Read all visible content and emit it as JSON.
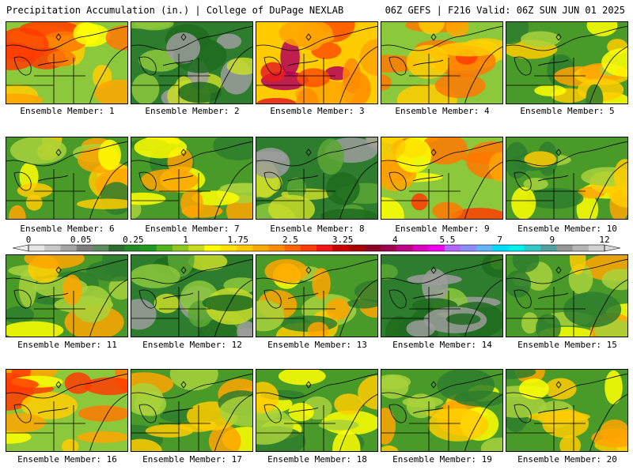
{
  "header": {
    "left": "Precipitation Accumulation (in.) | College of DuPage NEXLAB",
    "right": "06Z GEFS | F216 Valid: 06Z SUN JUN 01 2025"
  },
  "colorbar": {
    "labels": [
      "0",
      "0.05",
      "0.25",
      "1",
      "1.75",
      "2.5",
      "3.25",
      "4",
      "5.5",
      "7",
      "9",
      "12"
    ],
    "colors": [
      "#e6e6e6",
      "#c8c8c8",
      "#a6a6a6",
      "#7d7d7d",
      "#5f8a5f",
      "#2e6b2e",
      "#238b23",
      "#1e9a1e",
      "#4fb41e",
      "#8cc81e",
      "#c8dc1e",
      "#ffff00",
      "#ffe100",
      "#ffc800",
      "#ffaa00",
      "#ff8c00",
      "#ff6400",
      "#ff3c00",
      "#f01414",
      "#c80000",
      "#aa0000",
      "#8c0023",
      "#a00050",
      "#be0087",
      "#dc00be",
      "#f000f0",
      "#b464ff",
      "#8c8cff",
      "#64b4ff",
      "#00dcff",
      "#00f0f0",
      "#32c8c8",
      "#50a0a0",
      "#969696",
      "#b4b4b4",
      "#d2d2d2"
    ]
  },
  "members": [
    {
      "label": "Ensemble Member: 1",
      "scheme": "wet"
    },
    {
      "label": "Ensemble Member: 2",
      "scheme": "dry"
    },
    {
      "label": "Ensemble Member: 3",
      "scheme": "verywet"
    },
    {
      "label": "Ensemble Member: 4",
      "scheme": "wet"
    },
    {
      "label": "Ensemble Member: 5",
      "scheme": "mid"
    },
    {
      "label": "Ensemble Member: 6",
      "scheme": "mid"
    },
    {
      "label": "Ensemble Member: 7",
      "scheme": "mid"
    },
    {
      "label": "Ensemble Member: 8",
      "scheme": "dry"
    },
    {
      "label": "Ensemble Member: 9",
      "scheme": "wet"
    },
    {
      "label": "Ensemble Member: 10",
      "scheme": "mid"
    },
    {
      "label": "Ensemble Member: 11",
      "scheme": "mid"
    },
    {
      "label": "Ensemble Member: 12",
      "scheme": "dry"
    },
    {
      "label": "Ensemble Member: 13",
      "scheme": "mid"
    },
    {
      "label": "Ensemble Member: 14",
      "scheme": "dry"
    },
    {
      "label": "Ensemble Member: 15",
      "scheme": "mid"
    },
    {
      "label": "Ensemble Member: 16",
      "scheme": "wet"
    },
    {
      "label": "Ensemble Member: 17",
      "scheme": "mid"
    },
    {
      "label": "Ensemble Member: 18",
      "scheme": "mid"
    },
    {
      "label": "Ensemble Member: 19",
      "scheme": "mid"
    },
    {
      "label": "Ensemble Member: 20",
      "scheme": "mid"
    }
  ]
}
